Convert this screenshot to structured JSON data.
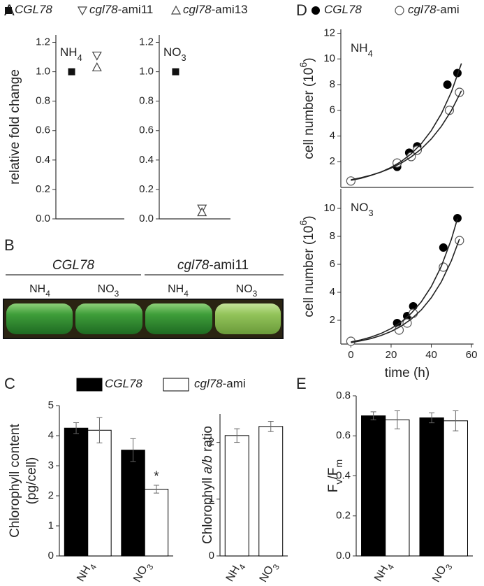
{
  "panel_labels": [
    "A",
    "B",
    "C",
    "D",
    "E"
  ],
  "photo": {
    "groups": [
      {
        "label": [
          {
            "i": "CGL78"
          }
        ],
        "conditions": [
          [
            {
              "t": "NH"
            },
            {
              "sub": "4"
            }
          ],
          [
            {
              "t": "NO"
            },
            {
              "sub": "3"
            }
          ]
        ]
      },
      {
        "label": [
          {
            "i": "cgl78"
          },
          {
            "t": "-ami11"
          }
        ],
        "conditions": [
          [
            {
              "t": "NH"
            },
            {
              "sub": "4"
            }
          ],
          [
            {
              "t": "NO"
            },
            {
              "sub": "3"
            }
          ]
        ]
      }
    ]
  },
  "chart_data": [
    {
      "type": "scatter",
      "title": [
        {
          "t": "NH"
        },
        {
          "sub": "4"
        }
      ],
      "ylabel": "relative fold change",
      "ylim": [
        0,
        1.25
      ],
      "yticks": [
        {
          "value": 0,
          "label": "0.0"
        },
        0.2,
        0.4,
        0.6,
        0.8,
        {
          "value": 1,
          "label": "1.0"
        },
        1.2
      ],
      "series": [
        {
          "name": [
            {
              "i": "CGL78"
            }
          ],
          "marker": "square",
          "color": "#111111",
          "values": [
            1.0
          ]
        },
        {
          "name": [
            {
              "i": "cgl78"
            },
            {
              "t": "-ami11"
            }
          ],
          "marker": "triangle-down",
          "color": "#444444",
          "values": [
            1.11
          ]
        },
        {
          "name": [
            {
              "i": "cgl78"
            },
            {
              "t": "-ami13"
            }
          ],
          "marker": "triangle-up",
          "color": "#444444",
          "values": [
            1.03
          ]
        }
      ]
    },
    {
      "type": "scatter",
      "title": [
        {
          "t": "NO"
        },
        {
          "sub": "3"
        }
      ],
      "ylim": [
        0,
        1.25
      ],
      "yticks": [
        {
          "value": 0,
          "label": "0.0"
        },
        0.2,
        0.4,
        0.6,
        0.8,
        {
          "value": 1,
          "label": "1.0"
        },
        1.2
      ],
      "series": [
        {
          "marker": "square",
          "color": "#111111",
          "values": [
            1.0
          ]
        },
        {
          "marker": "triangle-down",
          "color": "#444444",
          "values": [
            0.07
          ]
        },
        {
          "marker": "triangle-up",
          "color": "#444444",
          "values": [
            0.045
          ]
        }
      ]
    },
    {
      "type": "bar",
      "ylabel": "Chlorophyll content",
      "ylabel_unit": "(pg/cell)",
      "categories": [
        [
          {
            "t": "NH"
          },
          {
            "sub": "4"
          }
        ],
        [
          {
            "t": "NO"
          },
          {
            "sub": "3"
          }
        ]
      ],
      "ylim": [
        0,
        5
      ],
      "yticks": [
        0,
        1,
        2,
        3,
        4,
        5
      ],
      "annotation": "*",
      "series": [
        {
          "name": [
            {
              "i": "CGL78"
            }
          ],
          "color": "#000000",
          "values": [
            4.25,
            3.52
          ],
          "errors": [
            0.18,
            0.38
          ]
        },
        {
          "name": [
            {
              "i": "cgl78"
            },
            {
              "t": "-ami"
            }
          ],
          "color": "#ffffff",
          "values": [
            4.18,
            2.22
          ],
          "errors": [
            0.42,
            0.13
          ]
        }
      ]
    },
    {
      "type": "bar",
      "ylabel": [
        {
          "t": "Chlorophyll "
        },
        {
          "i": "a/b"
        },
        {
          "t": " ratio"
        }
      ],
      "categories": [
        [
          {
            "t": "NH"
          },
          {
            "sub": "4"
          }
        ],
        [
          {
            "t": "NO"
          },
          {
            "sub": "3"
          }
        ]
      ],
      "ylim": [
        0,
        2.5
      ],
      "yticks": [
        0,
        1,
        2
      ],
      "series": [
        {
          "color": "#ffffff",
          "values": [
            2.12,
            2.28
          ],
          "errors": [
            0.12,
            0.09
          ]
        }
      ]
    },
    {
      "type": "line",
      "title": [
        {
          "t": "NH"
        },
        {
          "sub": "4"
        }
      ],
      "ylabel": [
        {
          "t": "cell number (10"
        },
        {
          "sup": "6"
        },
        {
          "t": ")"
        }
      ],
      "xlim": [
        -5,
        61
      ],
      "ylim": [
        0,
        12.3
      ],
      "yticks": [
        2,
        4,
        6,
        8,
        10,
        12
      ],
      "series": [
        {
          "name": [
            {
              "i": "CGL78"
            }
          ],
          "marker": "circle-filled",
          "color": "#000000",
          "x": [
            0,
            23,
            29,
            33,
            48,
            53
          ],
          "values": [
            0.5,
            1.6,
            2.7,
            3.2,
            8.0,
            8.9
          ]
        },
        {
          "name": [
            {
              "i": "cgl78"
            },
            {
              "t": "-ami"
            }
          ],
          "marker": "circle-open",
          "color": "#555555",
          "x": [
            0,
            23,
            30,
            33,
            49,
            54
          ],
          "values": [
            0.5,
            1.9,
            2.4,
            2.9,
            6.0,
            7.4
          ]
        },
        {
          "marker": "line",
          "color": "#222222",
          "x": [
            0,
            5,
            10,
            15,
            20,
            25,
            30,
            35,
            40,
            45,
            50,
            55
          ],
          "values": [
            0.55,
            0.71,
            0.93,
            1.2,
            1.56,
            2.02,
            2.62,
            3.4,
            4.42,
            5.73,
            7.43,
            9.65
          ]
        },
        {
          "marker": "line",
          "color": "#222222",
          "x": [
            0,
            5,
            10,
            15,
            20,
            25,
            30,
            35,
            40,
            45,
            50,
            55
          ],
          "values": [
            0.6,
            0.75,
            0.95,
            1.2,
            1.5,
            1.89,
            2.38,
            3.0,
            3.77,
            4.75,
            5.98,
            7.52
          ]
        }
      ]
    },
    {
      "type": "line",
      "title": [
        {
          "t": "NO"
        },
        {
          "sub": "3"
        }
      ],
      "ylabel": [
        {
          "t": "cell number (10"
        },
        {
          "sup": "6"
        },
        {
          "t": ")"
        }
      ],
      "xlabel": "time (h)",
      "xlim": [
        -5,
        61
      ],
      "ylim": [
        0.3,
        11.4
      ],
      "yticks": [
        2,
        4,
        6,
        8,
        10
      ],
      "xticks": [
        0,
        20,
        40,
        60
      ],
      "series": [
        {
          "marker": "circle-filled",
          "color": "#000000",
          "x": [
            0,
            23,
            28,
            31,
            46,
            53
          ],
          "values": [
            0.5,
            1.8,
            2.3,
            3.0,
            7.2,
            9.3
          ]
        },
        {
          "marker": "circle-open",
          "color": "#555555",
          "x": [
            0,
            24,
            28,
            31,
            46,
            54
          ],
          "values": [
            0.5,
            1.3,
            1.8,
            2.5,
            5.8,
            7.7
          ]
        },
        {
          "marker": "line",
          "color": "#222222",
          "x": [
            0,
            5,
            10,
            15,
            20,
            25,
            30,
            35,
            40,
            45,
            50,
            53
          ],
          "values": [
            0.45,
            0.6,
            0.8,
            1.06,
            1.41,
            1.87,
            2.5,
            3.32,
            4.41,
            5.86,
            7.79,
            9.27
          ]
        },
        {
          "marker": "line",
          "color": "#222222",
          "x": [
            0,
            5,
            10,
            15,
            20,
            25,
            30,
            35,
            40,
            45,
            50,
            54
          ],
          "values": [
            0.4,
            0.53,
            0.69,
            0.91,
            1.2,
            1.58,
            2.08,
            2.74,
            3.61,
            4.75,
            6.26,
            7.8
          ]
        }
      ]
    },
    {
      "type": "bar",
      "ylabel": [
        {
          "t": "F"
        },
        {
          "sub": "v"
        },
        {
          "t": "/F"
        },
        {
          "sub": "m"
        }
      ],
      "categories": [
        [
          {
            "t": "NH"
          },
          {
            "sub": "4"
          }
        ],
        [
          {
            "t": "NO"
          },
          {
            "sub": "3"
          }
        ]
      ],
      "ylim": [
        0,
        0.8
      ],
      "yticks": [
        {
          "value": 0,
          "label": "0.0"
        },
        0.2,
        0.4,
        0.6,
        0.8
      ],
      "series": [
        {
          "color": "#000000",
          "values": [
            0.7,
            0.69
          ],
          "errors": [
            0.02,
            0.025
          ]
        },
        {
          "color": "#ffffff",
          "values": [
            0.68,
            0.675
          ],
          "errors": [
            0.045,
            0.05
          ]
        }
      ]
    }
  ]
}
